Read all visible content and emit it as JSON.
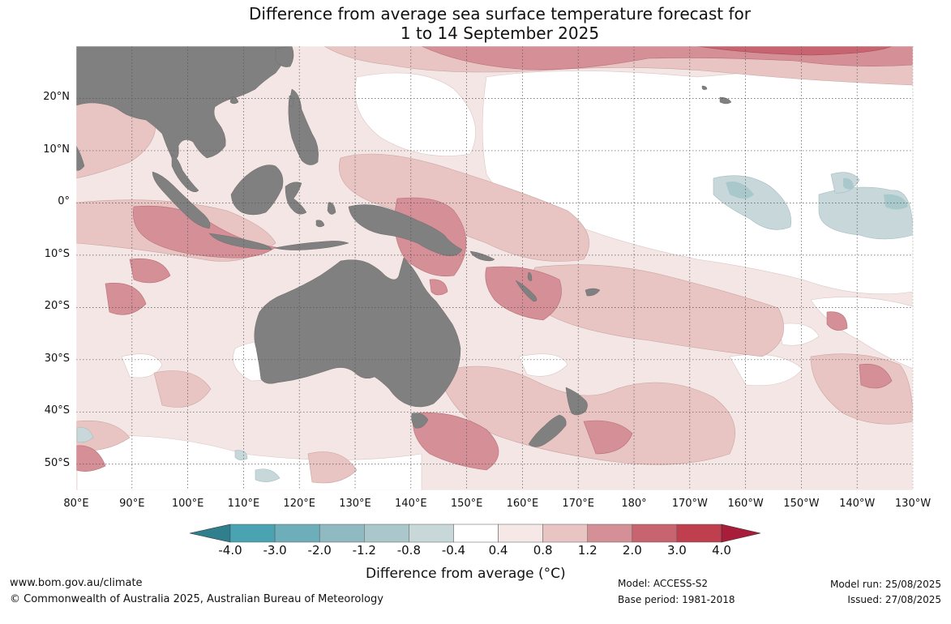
{
  "title": {
    "line1": "Difference from average sea surface temperature forecast for",
    "line2": "1 to 14 September 2025"
  },
  "map": {
    "lon_range": [
      80,
      230
    ],
    "lat_range": [
      -55,
      30
    ],
    "latitude_labels": [
      "20°N",
      "10°N",
      "0°",
      "10°S",
      "20°S",
      "30°S",
      "40°S",
      "50°S"
    ],
    "longitude_labels": [
      "80°E",
      "90°E",
      "100°E",
      "110°E",
      "120°E",
      "130°E",
      "140°E",
      "150°E",
      "160°E",
      "170°E",
      "180°",
      "170°W",
      "160°W",
      "150°W",
      "140°W",
      "130°W"
    ],
    "colors": {
      "land": "#808080",
      "ocean_neutral": "#ffffff",
      "warm_0.4_0.8": "#f4e6e4",
      "warm_0.8_1.2": "#e8c5c3",
      "warm_1.2_2.0": "#d58f96",
      "warm_2.0_3.0": "#c76470",
      "cool_-0.8_-0.4": "#c8d8da",
      "cool_-1.2_-0.8": "#a9c8cc"
    }
  },
  "colorbar": {
    "ticks": [
      "-4.0",
      "-3.0",
      "-2.0",
      "-1.2",
      "-0.8",
      "-0.4",
      "0.4",
      "0.8",
      "1.2",
      "2.0",
      "3.0",
      "4.0"
    ],
    "colors": [
      "#2f7f8d",
      "#4aa3b3",
      "#6eaebb",
      "#8fbac2",
      "#aac8cc",
      "#c8d8d9",
      "#ffffff",
      "#f5e8e6",
      "#e8c5c3",
      "#d58f96",
      "#c76470",
      "#c03f4f",
      "#a81d3a"
    ],
    "label": "Difference from average (°C)"
  },
  "footer": {
    "website": "www.bom.gov.au/climate",
    "copyright": "© Commonwealth of Australia 2025, Australian Bureau of Meteorology",
    "model": "Model: ACCESS-S2",
    "base_period": "Base period: 1981-2018",
    "model_run": "Model run: 25/08/2025",
    "issued": "Issued: 27/08/2025"
  }
}
